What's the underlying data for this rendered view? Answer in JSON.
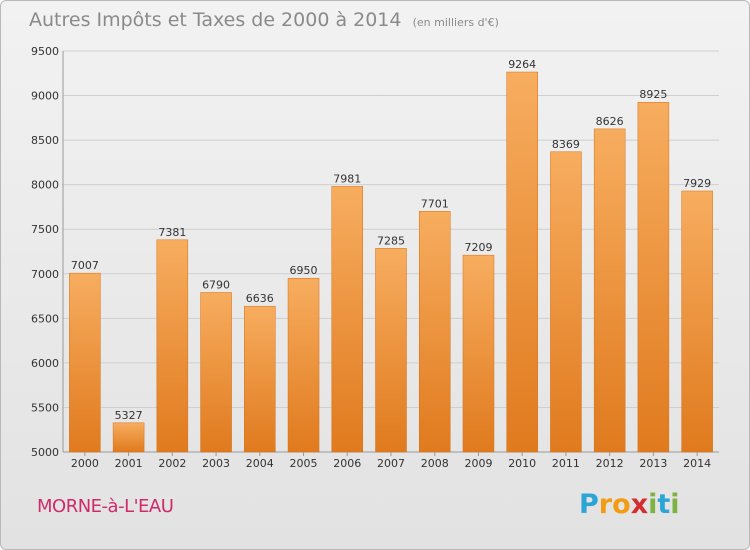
{
  "header": {
    "title": "Autres Impôts et Taxes de 2000 à 2014",
    "unit": "(en milliers d'€)"
  },
  "footer": {
    "commune": "MORNE-à-L'EAU",
    "logo_letters": [
      "P",
      "r",
      "o",
      "x",
      "i",
      "t",
      "i"
    ],
    "logo_colors": [
      "#2aa5d6",
      "#f39c12",
      "#f39c12",
      "#d32f2f",
      "#7cb342",
      "#2aa5d6",
      "#7cb342"
    ]
  },
  "colors": {
    "bar_light": "#f7ad5f",
    "bar_dark": "#e07a1e",
    "grid": "#cfcfcf",
    "axis_text": "#333333"
  },
  "chart_data": {
    "type": "bar",
    "title": "Autres Impôts et Taxes de 2000 à 2014",
    "xlabel": "",
    "ylabel": "",
    "categories": [
      "2000",
      "2001",
      "2002",
      "2003",
      "2004",
      "2005",
      "2006",
      "2007",
      "2008",
      "2009",
      "2010",
      "2011",
      "2012",
      "2013",
      "2014"
    ],
    "values": [
      7007,
      5327,
      7381,
      6790,
      6636,
      6950,
      7981,
      7285,
      7701,
      7209,
      9264,
      8369,
      8626,
      8925,
      7929
    ],
    "ylim": [
      5000,
      9500
    ],
    "yticks": [
      5000,
      5500,
      6000,
      6500,
      7000,
      7500,
      8000,
      8500,
      9000,
      9500
    ],
    "grid": true
  }
}
